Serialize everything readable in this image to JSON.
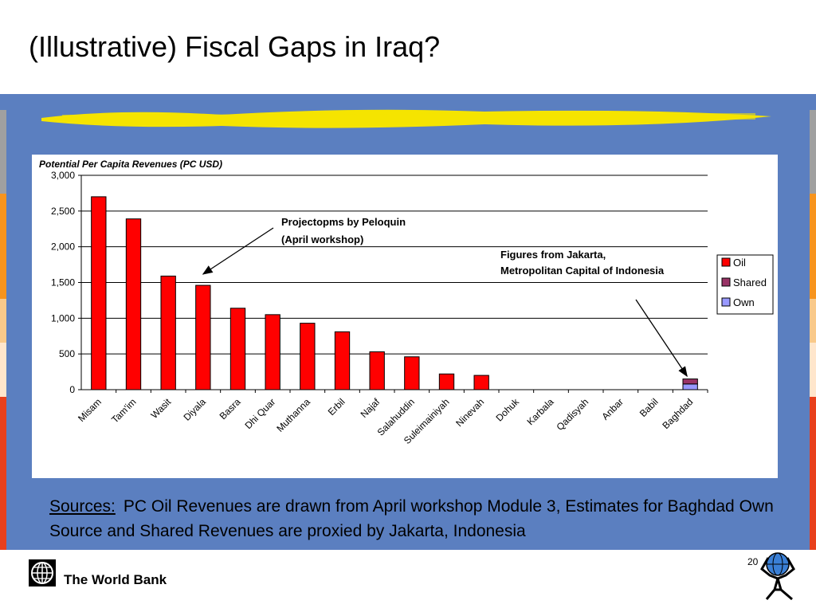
{
  "slide": {
    "title": "(Illustrative) Fiscal Gaps in Iraq?",
    "sources_label": "Sources:",
    "sources_text": "PC Oil Revenues are drawn from April workshop Module 3, Estimates for Baghdad Own Source and Shared Revenues are proxied by Jakarta, Indonesia",
    "footer_brand": "The World Bank",
    "page_number": "20"
  },
  "colors": {
    "band": "#5b7fc0",
    "highlight": "#f5e400",
    "oil": "#ff0000",
    "shared": "#993366",
    "own": "#9999ff",
    "left_stripe": [
      "#ffffff",
      "#5b7fc0",
      "#a0a0a0",
      "#f7941d",
      "#f9c98a",
      "#ffe6cc",
      "#e8401c"
    ]
  },
  "chart_data": {
    "type": "bar",
    "stacked": true,
    "title": "Potential Per Capita Revenues (PC USD)",
    "categories": [
      "Misam",
      "Tam'im",
      "Wasit",
      "Diyala",
      "Basra",
      "Dhi Quar",
      "Muthanna",
      "Erbil",
      "Najaf",
      "Salahuddin",
      "Suleimainiyah",
      "Ninevah",
      "Dohuk",
      "Karbala",
      "Qadisyah",
      "Anbar",
      "Babil",
      "Baghdad"
    ],
    "series": [
      {
        "name": "Oil",
        "color": "#ff0000",
        "values": [
          2700,
          2390,
          1590,
          1460,
          1140,
          1050,
          930,
          810,
          530,
          460,
          220,
          200,
          0,
          0,
          0,
          0,
          0,
          0
        ]
      },
      {
        "name": "Shared",
        "color": "#993366",
        "values": [
          0,
          0,
          0,
          0,
          0,
          0,
          0,
          0,
          0,
          0,
          0,
          0,
          0,
          0,
          0,
          0,
          0,
          70
        ]
      },
      {
        "name": "Own",
        "color": "#9999ff",
        "values": [
          0,
          0,
          0,
          0,
          0,
          0,
          0,
          0,
          0,
          0,
          0,
          0,
          0,
          0,
          0,
          0,
          0,
          80
        ]
      }
    ],
    "ylim": [
      0,
      3000
    ],
    "yticks": [
      0,
      500,
      1000,
      1500,
      2000,
      2500,
      3000
    ],
    "ytick_labels": [
      "0",
      "500",
      "1,000",
      "1,500",
      "2,000",
      "2,500",
      "3,000"
    ],
    "grid": true,
    "legend": "right",
    "annotations": [
      {
        "lines": [
          "Projectopms by Peloquin",
          "(April workshop)"
        ],
        "points_to": "Diyala"
      },
      {
        "lines": [
          "Figures from Jakarta,",
          "Metropolitan Capital of Indonesia"
        ],
        "points_to": "Baghdad"
      }
    ]
  }
}
